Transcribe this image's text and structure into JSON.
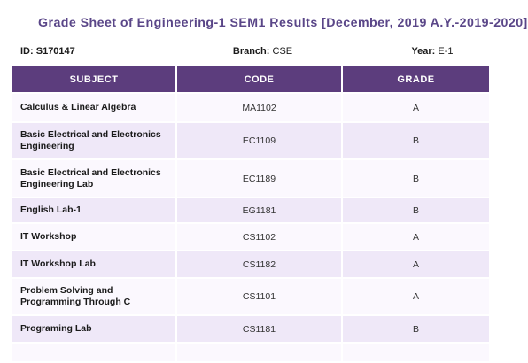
{
  "title": "Grade Sheet of Engineering-1 SEM1 Results [December, 2019 A.Y.-2019-2020]",
  "student": {
    "id_label": "ID:",
    "id_value": "S170147",
    "branch_label": "Branch:",
    "branch_value": "CSE",
    "year_label": "Year:",
    "year_value": "E-1"
  },
  "table": {
    "headers": [
      "SUBJECT",
      "CODE",
      "GRADE"
    ],
    "rows": [
      {
        "subject": "Calculus & Linear Algebra",
        "code": "MA1102",
        "grade": "A"
      },
      {
        "subject": "Basic Electrical and Electronics Engineering",
        "code": "EC1109",
        "grade": "B"
      },
      {
        "subject": "Basic Electrical and Electronics Engineering Lab",
        "code": "EC1189",
        "grade": "B"
      },
      {
        "subject": "English Lab-1",
        "code": "EG1181",
        "grade": "B"
      },
      {
        "subject": "IT Workshop",
        "code": "CS1102",
        "grade": "A"
      },
      {
        "subject": "IT Workshop Lab",
        "code": "CS1182",
        "grade": "A"
      },
      {
        "subject": "Problem Solving and Programming Through C",
        "code": "CS1101",
        "grade": "A"
      },
      {
        "subject": "Programing Lab",
        "code": "CS1181",
        "grade": "B"
      }
    ]
  },
  "colors": {
    "header_bg": "#5c3d7d",
    "title_color": "#5a4688",
    "row_light": "#fbf8fe",
    "row_dark": "#efe8f8"
  }
}
